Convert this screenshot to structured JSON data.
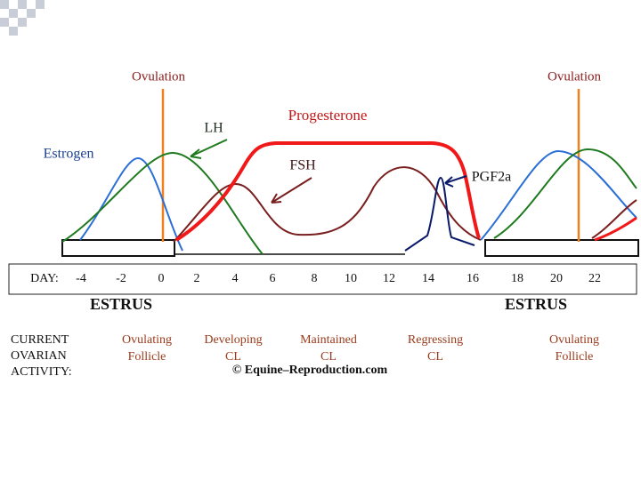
{
  "hormones": {
    "ovulation_left": "Ovulation",
    "ovulation_right": "Ovulation",
    "lh": "LH",
    "progesterone": "Progesterone",
    "estrogen": "Estrogen",
    "fsh": "FSH",
    "pgf2a": "PGF2a"
  },
  "day_label": "DAY:",
  "days": [
    -4,
    -2,
    0,
    2,
    4,
    6,
    8,
    10,
    12,
    14,
    16,
    18,
    20,
    22
  ],
  "estrus": [
    "ESTRUS",
    "ESTRUS"
  ],
  "activity_heading": [
    "CURRENT",
    "OVARIAN",
    "ACTIVITY:"
  ],
  "activities": [
    [
      "Ovulating",
      "Follicle"
    ],
    [
      "Developing",
      "CL"
    ],
    [
      "Maintained",
      "CL"
    ],
    [
      "Regressing",
      "CL"
    ],
    [
      "Ovulating",
      "Follicle"
    ]
  ],
  "copyright": "© Equine–Reproduction.com"
}
